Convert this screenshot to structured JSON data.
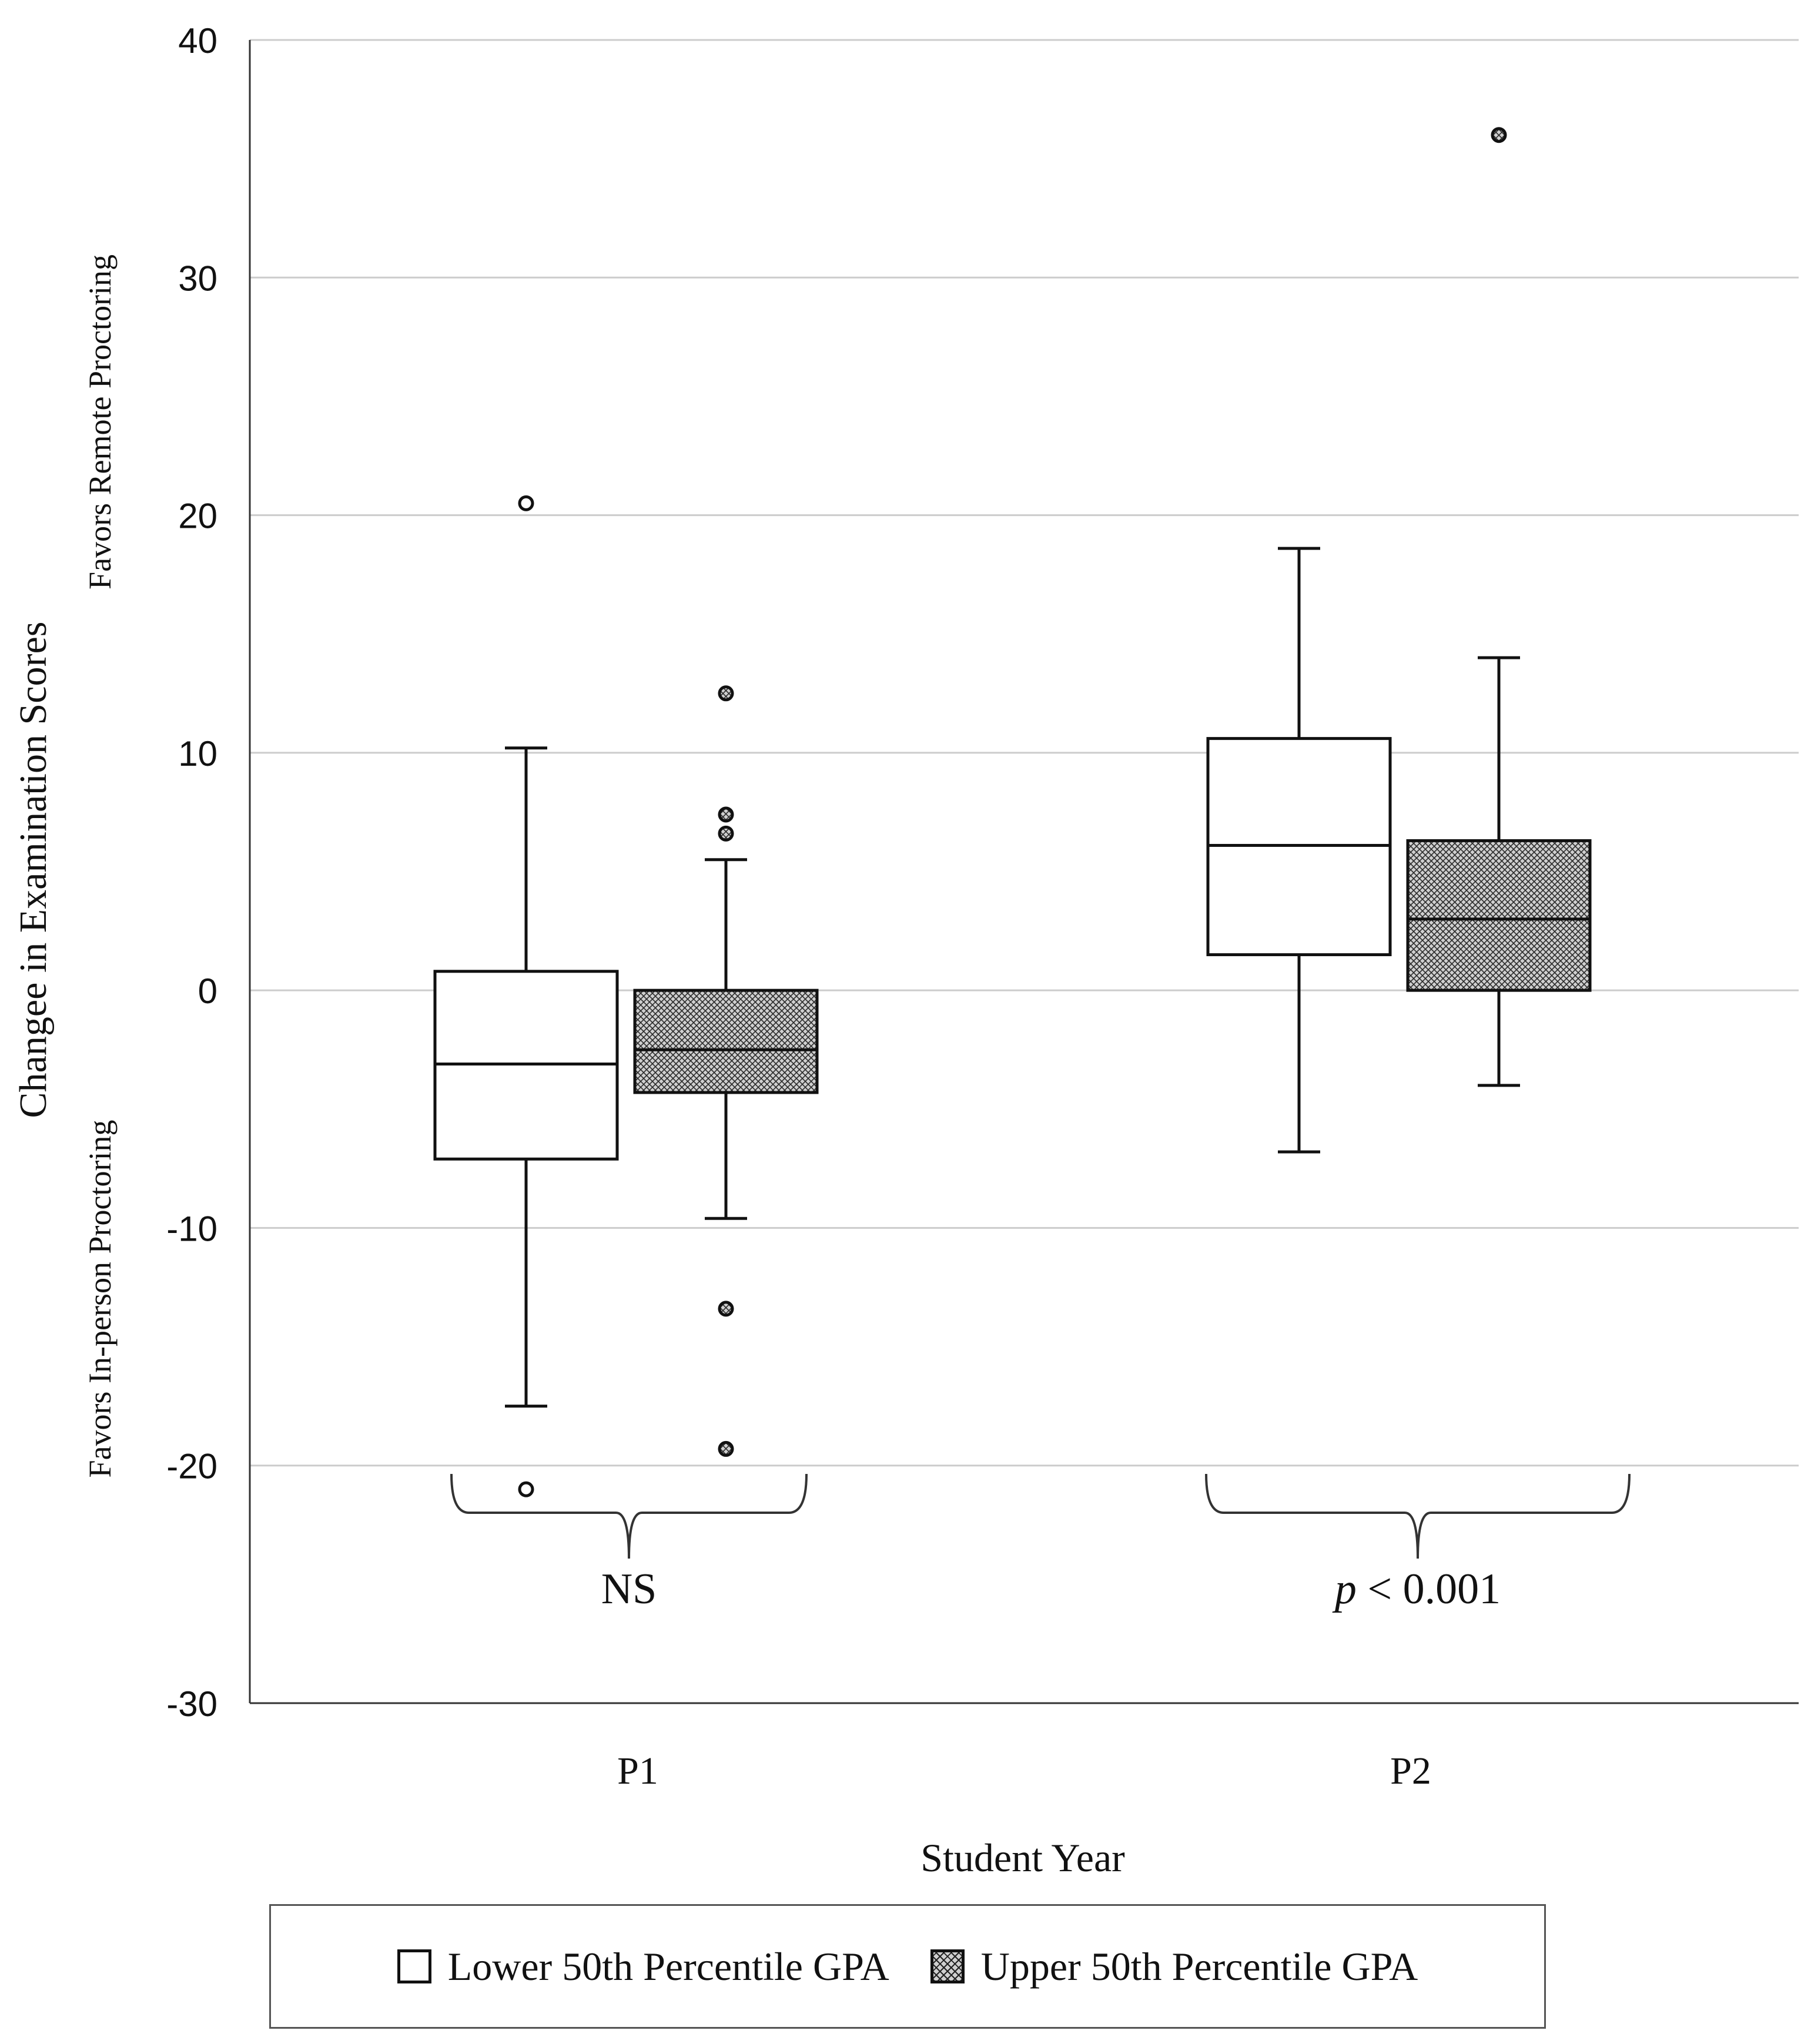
{
  "chart_data": {
    "type": "box",
    "title": "",
    "xlabel": "Student Year",
    "ylabel": "Changee in Examination Scores",
    "ylabel_top": "Favors Remote Proctoring",
    "ylabel_bottom": "Favors In-person Proctoring",
    "ylim": [
      -30,
      40
    ],
    "yticks": [
      40,
      30,
      20,
      10,
      0,
      -10,
      -20,
      -30
    ],
    "yticks_labels": [
      "40",
      "30",
      "20",
      "10",
      "0",
      "-10",
      "-20",
      "-30"
    ],
    "grid": true,
    "categories": [
      "P1",
      "P2"
    ],
    "series": [
      {
        "name": "Lower 50th Percentile GPA",
        "fill": "#ffffff",
        "boxes": [
          {
            "category": "P1",
            "whisker_low": -17.5,
            "q1": -7.1,
            "median": -3.1,
            "q3": 0.8,
            "whisker_high": 10.2,
            "outliers": [
              20.5,
              -21.0
            ]
          },
          {
            "category": "P2",
            "whisker_low": -6.8,
            "q1": 1.5,
            "median": 6.1,
            "q3": 10.6,
            "whisker_high": 18.6,
            "outliers": []
          }
        ]
      },
      {
        "name": "Upper 50th Percentile GPA",
        "fill": "#cfcfcf",
        "boxes": [
          {
            "category": "P1",
            "whisker_low": -9.6,
            "q1": -4.3,
            "median": -2.5,
            "q3": 0.0,
            "whisker_high": 5.5,
            "outliers": [
              12.5,
              7.4,
              6.6,
              -13.4,
              -19.3
            ]
          },
          {
            "category": "P2",
            "whisker_low": -4.0,
            "q1": 0.0,
            "median": 3.0,
            "q3": 6.3,
            "whisker_high": 14.0,
            "outliers": [
              36.0
            ]
          }
        ]
      }
    ],
    "annotations": [
      {
        "category": "P1",
        "text": "NS",
        "italic_prefix": ""
      },
      {
        "category": "P2",
        "text": " < 0.001",
        "italic_prefix": "p"
      }
    ],
    "legend": {
      "placement": "bottom",
      "items": [
        "Lower 50th Percentile GPA",
        "Upper 50th Percentile GPA"
      ]
    },
    "colors": {
      "grid": "#cccccc",
      "axis": "#333333",
      "stroke": "#111111",
      "hatch_fill": "#cfcfcf"
    }
  }
}
